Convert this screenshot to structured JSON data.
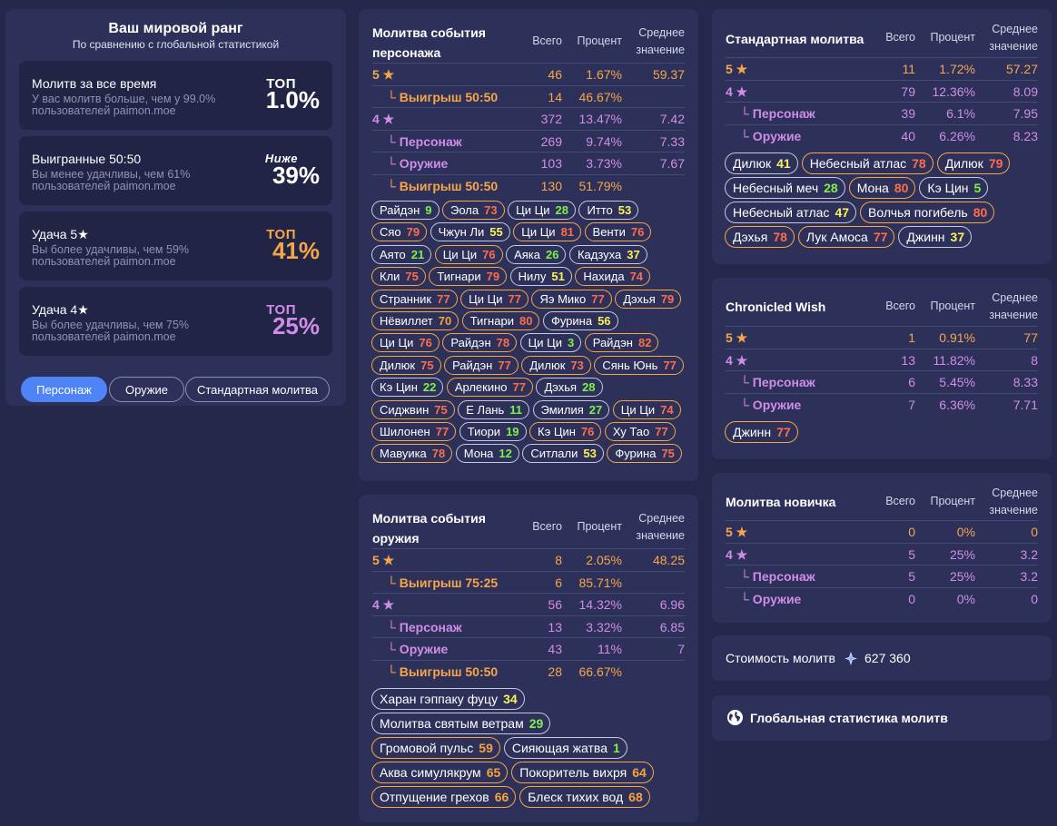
{
  "rank": {
    "title": "Ваш мировой ранг",
    "subtitle": "По сравнению с глобальной статистикой",
    "items": [
      {
        "label": "Молитв за все время",
        "desc": "У вас молитв больше, чем у 99.0% пользователей paimon.moe",
        "word": "ТОП",
        "value": "1.0%",
        "color": "#ffffff"
      },
      {
        "label": "Выигранные 50:50",
        "desc": "Вы менее удачливы, чем 61% пользователей paimon.moe",
        "word": "Ниже",
        "value": "39%",
        "color": "#ffffff"
      },
      {
        "label": "Удача 5★",
        "desc": "Вы более удачливы, чем 59% пользователей paimon.moe",
        "word": "ТОП",
        "value": "41%",
        "color": "#f6a64a"
      },
      {
        "label": "Удача 4★",
        "desc": "Вы более удачливы, чем 75% пользователей paimon.moe",
        "word": "ТОП",
        "value": "25%",
        "color": "#d08de7"
      }
    ],
    "tabs": [
      "Персонаж",
      "Оружие",
      "Стандартная молитва"
    ]
  },
  "headers": {
    "total": "Всего",
    "percent": "Процент",
    "avg1": "Среднее",
    "avg2": "значение"
  },
  "char_event": {
    "title1": "Молитва события",
    "title2": "персонажа",
    "rows": [
      {
        "label": "5 ★",
        "total": "46",
        "percent": "1.67%",
        "avg": "59.37"
      },
      {
        "label": "└ Выигрыш 50:50",
        "total": "14",
        "percent": "46.67%",
        "avg": ""
      },
      {
        "label": "4 ★",
        "total": "372",
        "percent": "13.47%",
        "avg": "7.42"
      },
      {
        "label": "└ Персонаж",
        "total": "269",
        "percent": "9.74%",
        "avg": "7.33"
      },
      {
        "label": "└ Оружие",
        "total": "103",
        "percent": "3.73%",
        "avg": "7.67"
      },
      {
        "label": "└ Выигрыш 50:50",
        "total": "130",
        "percent": "51.79%",
        "avg": ""
      }
    ],
    "pills": [
      {
        "name": "Райдэн",
        "n": "9",
        "c": "g"
      },
      {
        "name": "Эола",
        "n": "73",
        "c": "r"
      },
      {
        "name": "Ци Ци",
        "n": "28",
        "c": "g"
      },
      {
        "name": "Итто",
        "n": "53",
        "c": "y"
      },
      {
        "name": "Сяо",
        "n": "79",
        "c": "r"
      },
      {
        "name": "Чжун Ли",
        "n": "55",
        "c": "y"
      },
      {
        "name": "Ци Ци",
        "n": "81",
        "c": "r"
      },
      {
        "name": "Венти",
        "n": "76",
        "c": "r"
      },
      {
        "name": "Аято",
        "n": "21",
        "c": "g"
      },
      {
        "name": "Ци Ци",
        "n": "76",
        "c": "r"
      },
      {
        "name": "Аяка",
        "n": "26",
        "c": "g"
      },
      {
        "name": "Кадзуха",
        "n": "37",
        "c": "y"
      },
      {
        "name": "Кли",
        "n": "75",
        "c": "r"
      },
      {
        "name": "Тигнари",
        "n": "79",
        "c": "r"
      },
      {
        "name": "Нилу",
        "n": "51",
        "c": "y"
      },
      {
        "name": "Нахида",
        "n": "74",
        "c": "r"
      },
      {
        "name": "Странник",
        "n": "77",
        "c": "r"
      },
      {
        "name": "Ци Ци",
        "n": "77",
        "c": "r"
      },
      {
        "name": "Яэ Мико",
        "n": "77",
        "c": "r"
      },
      {
        "name": "Дэхья",
        "n": "79",
        "c": "r"
      },
      {
        "name": "Нёвиллет",
        "n": "70",
        "c": "o"
      },
      {
        "name": "Тигнари",
        "n": "80",
        "c": "r"
      },
      {
        "name": "Фурина",
        "n": "56",
        "c": "y"
      },
      {
        "name": "Ци Ци",
        "n": "76",
        "c": "r"
      },
      {
        "name": "Райдэн",
        "n": "78",
        "c": "r"
      },
      {
        "name": "Ци Ци",
        "n": "3",
        "c": "g"
      },
      {
        "name": "Райдэн",
        "n": "82",
        "c": "r"
      },
      {
        "name": "Дилюк",
        "n": "75",
        "c": "r"
      },
      {
        "name": "Райдэн",
        "n": "77",
        "c": "r"
      },
      {
        "name": "Дилюк",
        "n": "73",
        "c": "r"
      },
      {
        "name": "Сянь Юнь",
        "n": "77",
        "c": "r"
      },
      {
        "name": "Кэ Цин",
        "n": "22",
        "c": "g"
      },
      {
        "name": "Арлекино",
        "n": "77",
        "c": "r"
      },
      {
        "name": "Дэхья",
        "n": "28",
        "c": "g"
      },
      {
        "name": "Сиджвин",
        "n": "75",
        "c": "r"
      },
      {
        "name": "Е Лань",
        "n": "11",
        "c": "g"
      },
      {
        "name": "Эмилия",
        "n": "27",
        "c": "g"
      },
      {
        "name": "Ци Ци",
        "n": "74",
        "c": "r"
      },
      {
        "name": "Шилонен",
        "n": "77",
        "c": "r"
      },
      {
        "name": "Тиори",
        "n": "19",
        "c": "g"
      },
      {
        "name": "Кэ Цин",
        "n": "76",
        "c": "r"
      },
      {
        "name": "Ху Тао",
        "n": "77",
        "c": "r"
      },
      {
        "name": "Мавуика",
        "n": "78",
        "c": "r"
      },
      {
        "name": "Мона",
        "n": "12",
        "c": "g"
      },
      {
        "name": "Ситлали",
        "n": "53",
        "c": "y"
      },
      {
        "name": "Фурина",
        "n": "75",
        "c": "r"
      }
    ]
  },
  "weapon_event": {
    "title1": "Молитва события",
    "title2": "оружия",
    "rows": [
      {
        "label": "5 ★",
        "total": "8",
        "percent": "2.05%",
        "avg": "48.25"
      },
      {
        "label": "└ Выигрыш 75:25",
        "total": "6",
        "percent": "85.71%",
        "avg": ""
      },
      {
        "label": "4 ★",
        "total": "56",
        "percent": "14.32%",
        "avg": "6.96"
      },
      {
        "label": "└ Персонаж",
        "total": "13",
        "percent": "3.32%",
        "avg": "6.85"
      },
      {
        "label": "└ Оружие",
        "total": "43",
        "percent": "11%",
        "avg": "7"
      },
      {
        "label": "└ Выигрыш 50:50",
        "total": "28",
        "percent": "66.67%",
        "avg": ""
      }
    ],
    "pills": [
      {
        "name": "Харан гэппаку фуцу",
        "n": "34",
        "c": "y"
      },
      {
        "name": "Молитва святым ветрам",
        "n": "29",
        "c": "g"
      },
      {
        "name": "Громовой пульс",
        "n": "59",
        "c": "o"
      },
      {
        "name": "Сияющая жатва",
        "n": "1",
        "c": "g"
      },
      {
        "name": "Аква симулякрум",
        "n": "65",
        "c": "o"
      },
      {
        "name": "Покоритель вихря",
        "n": "64",
        "c": "o"
      },
      {
        "name": "Отпущение грехов",
        "n": "66",
        "c": "o"
      },
      {
        "name": "Блеск тихих вод",
        "n": "68",
        "c": "o"
      }
    ]
  },
  "standard": {
    "title": "Стандартная молитва",
    "rows": [
      {
        "label": "5 ★",
        "total": "11",
        "percent": "1.72%",
        "avg": "57.27"
      },
      {
        "label": "4 ★",
        "total": "79",
        "percent": "12.36%",
        "avg": "8.09"
      },
      {
        "label": "└ Персонаж",
        "total": "39",
        "percent": "6.1%",
        "avg": "7.95"
      },
      {
        "label": "└ Оружие",
        "total": "40",
        "percent": "6.26%",
        "avg": "8.23"
      }
    ],
    "pills": [
      {
        "name": "Дилюк",
        "n": "41",
        "c": "y"
      },
      {
        "name": "Небесный атлас",
        "n": "78",
        "c": "r"
      },
      {
        "name": "Дилюк",
        "n": "79",
        "c": "r"
      },
      {
        "name": "Небесный меч",
        "n": "28",
        "c": "g"
      },
      {
        "name": "Мона",
        "n": "80",
        "c": "r"
      },
      {
        "name": "Кэ Цин",
        "n": "5",
        "c": "g"
      },
      {
        "name": "Небесный атлас",
        "n": "47",
        "c": "y"
      },
      {
        "name": "Волчья погибель",
        "n": "80",
        "c": "r"
      },
      {
        "name": "Дэхья",
        "n": "78",
        "c": "r"
      },
      {
        "name": "Лук Амоса",
        "n": "77",
        "c": "r"
      },
      {
        "name": "Джинн",
        "n": "37",
        "c": "y"
      }
    ]
  },
  "chronicled": {
    "title": "Chronicled Wish",
    "rows": [
      {
        "label": "5 ★",
        "total": "1",
        "percent": "0.91%",
        "avg": "77"
      },
      {
        "label": "4 ★",
        "total": "13",
        "percent": "11.82%",
        "avg": "8"
      },
      {
        "label": "└ Персонаж",
        "total": "6",
        "percent": "5.45%",
        "avg": "8.33"
      },
      {
        "label": "└ Оружие",
        "total": "7",
        "percent": "6.36%",
        "avg": "7.71"
      }
    ],
    "pills": [
      {
        "name": "Джинн",
        "n": "77",
        "c": "r"
      }
    ]
  },
  "beginner": {
    "title": "Молитва новичка",
    "rows": [
      {
        "label": "5 ★",
        "total": "0",
        "percent": "0%",
        "avg": "0"
      },
      {
        "label": "4 ★",
        "total": "5",
        "percent": "25%",
        "avg": "3.2"
      },
      {
        "label": "└ Персонаж",
        "total": "5",
        "percent": "25%",
        "avg": "3.2"
      },
      {
        "label": "└ Оружие",
        "total": "0",
        "percent": "0%",
        "avg": "0"
      }
    ]
  },
  "cost": {
    "label": "Стоимость молитв",
    "value": "627 360",
    "icon": "primogem-icon"
  },
  "global": {
    "label": "Глобальная статистика молитв",
    "icon": "globe-icon"
  }
}
